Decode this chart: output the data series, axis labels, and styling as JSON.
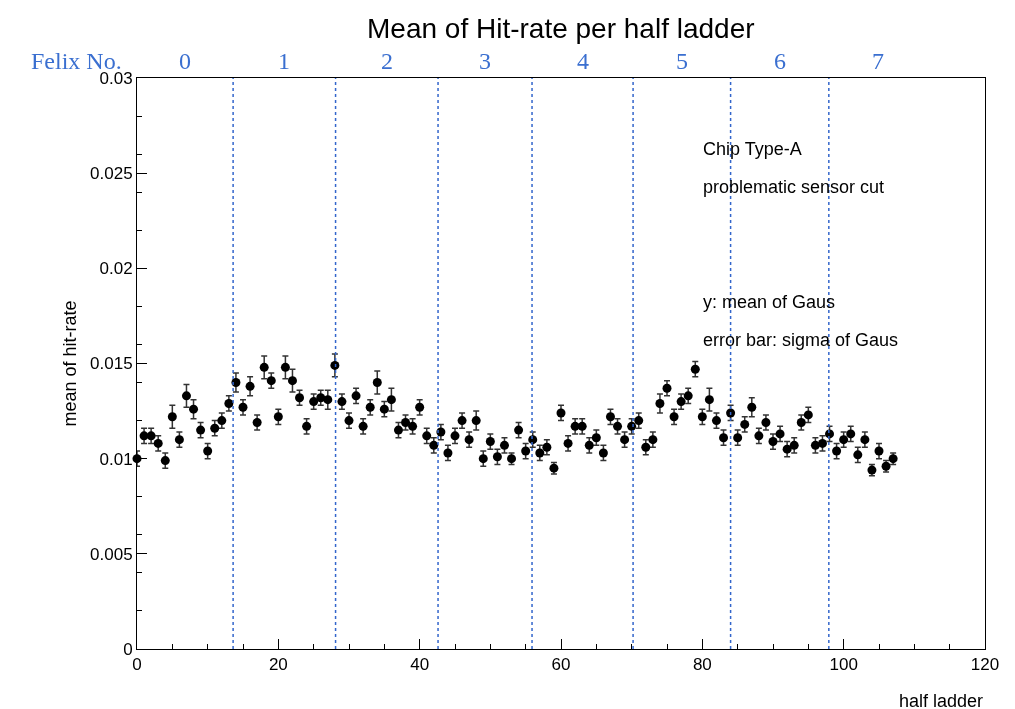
{
  "chart_data": {
    "type": "scatter",
    "title": "Mean of Hit-rate per half ladder",
    "xlabel": "half ladder",
    "ylabel": "mean of hit-rate",
    "x": [
      0,
      1,
      2,
      3,
      4,
      5,
      6,
      7,
      8,
      9,
      10,
      11,
      12,
      13,
      14,
      15,
      16,
      17,
      18,
      19,
      20,
      21,
      22,
      23,
      24,
      25,
      26,
      27,
      28,
      29,
      30,
      31,
      32,
      33,
      34,
      35,
      36,
      37,
      38,
      39,
      40,
      41,
      42,
      43,
      44,
      45,
      46,
      47,
      48,
      49,
      50,
      51,
      52,
      53,
      54,
      55,
      56,
      57,
      58,
      59,
      60,
      61,
      62,
      63,
      64,
      65,
      66,
      67,
      68,
      69,
      70,
      71,
      72,
      73,
      74,
      75,
      76,
      77,
      78,
      79,
      80,
      81,
      82,
      83,
      84,
      85,
      86,
      87,
      88,
      89,
      90,
      91,
      92,
      93,
      94,
      95,
      96,
      97,
      98,
      99,
      100,
      101,
      102,
      103,
      104,
      105,
      106,
      107
    ],
    "values": [
      0.01,
      0.0112,
      0.0112,
      0.0108,
      0.0099,
      0.0122,
      0.011,
      0.0133,
      0.0126,
      0.0115,
      0.0104,
      0.0116,
      0.012,
      0.0129,
      0.014,
      0.0127,
      0.0138,
      0.0119,
      0.0148,
      0.0141,
      0.0122,
      0.0148,
      0.0141,
      0.0132,
      0.0117,
      0.013,
      0.0132,
      0.0131,
      0.0149,
      0.013,
      0.012,
      0.0133,
      0.0117,
      0.0127,
      0.014,
      0.0126,
      0.0131,
      0.0115,
      0.0119,
      0.0117,
      0.0127,
      0.0112,
      0.0107,
      0.0114,
      0.0103,
      0.0112,
      0.012,
      0.011,
      0.012,
      0.01,
      0.0109,
      0.0101,
      0.0107,
      0.01,
      0.0115,
      0.0104,
      0.011,
      0.0103,
      0.0106,
      0.0095,
      0.0124,
      0.0108,
      0.0117,
      0.0117,
      0.0107,
      0.0111,
      0.0103,
      0.0122,
      0.0117,
      0.011,
      0.0117,
      0.012,
      0.0106,
      0.011,
      0.0129,
      0.0137,
      0.0122,
      0.013,
      0.0133,
      0.0147,
      0.0122,
      0.0131,
      0.012,
      0.0111,
      0.0124,
      0.0111,
      0.0118,
      0.0127,
      0.0112,
      0.0119,
      0.0109,
      0.0113,
      0.0105,
      0.0107,
      0.0119,
      0.0123,
      0.0107,
      0.0108,
      0.0113,
      0.0104,
      0.011,
      0.0113,
      0.0102,
      0.011,
      0.0094,
      0.0104,
      0.0096,
      0.01
    ],
    "errors": [
      0.0004,
      0.0004,
      0.0004,
      0.0004,
      0.0004,
      0.0006,
      0.0004,
      0.0006,
      0.0005,
      0.0004,
      0.0004,
      0.0004,
      0.0004,
      0.0004,
      0.0005,
      0.0004,
      0.0005,
      0.0004,
      0.0006,
      0.0004,
      0.0004,
      0.0006,
      0.0006,
      0.0004,
      0.0004,
      0.0004,
      0.0004,
      0.0005,
      0.0006,
      0.0004,
      0.0004,
      0.0004,
      0.0004,
      0.0004,
      0.0006,
      0.0004,
      0.0006,
      0.0004,
      0.0004,
      0.0004,
      0.0004,
      0.0004,
      0.0004,
      0.0004,
      0.0004,
      0.0004,
      0.0004,
      0.0004,
      0.0005,
      0.0004,
      0.0004,
      0.0004,
      0.0004,
      0.0003,
      0.0004,
      0.0004,
      0.0004,
      0.0004,
      0.0004,
      0.0003,
      0.0004,
      0.0004,
      0.0004,
      0.0004,
      0.0004,
      0.0004,
      0.0004,
      0.0004,
      0.0004,
      0.0004,
      0.0004,
      0.0004,
      0.0004,
      0.0004,
      0.0005,
      0.0004,
      0.0004,
      0.0004,
      0.0004,
      0.0004,
      0.0004,
      0.0006,
      0.0004,
      0.0004,
      0.0004,
      0.0004,
      0.0004,
      0.0005,
      0.0004,
      0.0004,
      0.0004,
      0.0004,
      0.0004,
      0.0004,
      0.0004,
      0.0004,
      0.0004,
      0.0004,
      0.0004,
      0.0004,
      0.0004,
      0.0004,
      0.0004,
      0.0004,
      0.0003,
      0.0004,
      0.0003,
      0.0003
    ],
    "color": "#000000",
    "marker": "circle",
    "xlim": [
      0,
      120
    ],
    "xticks": [
      0,
      20,
      40,
      60,
      80,
      100,
      120
    ],
    "ylim": [
      0,
      0.03
    ],
    "yticks": [
      0,
      0.005,
      0.01,
      0.015,
      0.02,
      0.025,
      0.03
    ],
    "ref_lines": [
      {
        "axis": "x",
        "value": 13.6,
        "color": "#3366cc",
        "line_style": "dotted"
      },
      {
        "axis": "x",
        "value": 28.1,
        "color": "#3366cc",
        "line_style": "dotted"
      },
      {
        "axis": "x",
        "value": 42.6,
        "color": "#3366cc",
        "line_style": "dotted"
      },
      {
        "axis": "x",
        "value": 55.9,
        "color": "#3366cc",
        "line_style": "dotted"
      },
      {
        "axis": "x",
        "value": 70.2,
        "color": "#3366cc",
        "line_style": "dotted"
      },
      {
        "axis": "x",
        "value": 84.0,
        "color": "#3366cc",
        "line_style": "dotted"
      },
      {
        "axis": "x",
        "value": 97.9,
        "color": "#3366cc",
        "line_style": "dotted"
      }
    ],
    "annotations": [
      "Felix No.",
      "0",
      "1",
      "2",
      "3",
      "4",
      "5",
      "6",
      "7",
      "Chip Type-A",
      "problematic sensor cut",
      "y: mean of Gaus",
      "error bar: sigma of Gaus"
    ]
  }
}
